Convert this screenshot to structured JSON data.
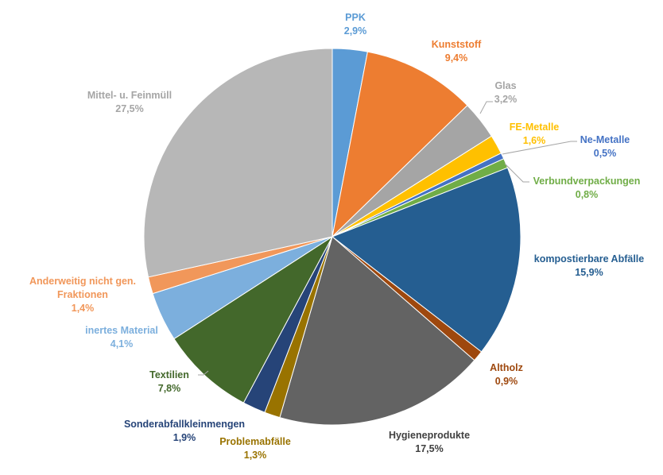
{
  "chart_data": {
    "type": "pie",
    "start_angle_deg": 0,
    "direction": "clockwise",
    "slices": [
      {
        "name": "PPK",
        "value": 2.9,
        "label": "2,9%",
        "color": "#5B9BD5",
        "text_color": "#5B9BD5"
      },
      {
        "name": "Kunststoff",
        "value": 9.4,
        "label": "9,4%",
        "color": "#ED7D31",
        "text_color": "#ED7D31"
      },
      {
        "name": "Glas",
        "value": 3.2,
        "label": "3,2%",
        "color": "#A5A5A5",
        "text_color": "#A5A5A5"
      },
      {
        "name": "FE-Metalle",
        "value": 1.6,
        "label": "1,6%",
        "color": "#FFC000",
        "text_color": "#FFC000"
      },
      {
        "name": "Ne-Metalle",
        "value": 0.5,
        "label": "0,5%",
        "color": "#4472C4",
        "text_color": "#4472C4"
      },
      {
        "name": "Verbundverpackungen",
        "value": 0.8,
        "label": "0,8%",
        "color": "#70AD47",
        "text_color": "#70AD47"
      },
      {
        "name": "kompostierbare Abfälle",
        "value": 15.9,
        "label": "15,9%",
        "color": "#255E91",
        "text_color": "#255E91"
      },
      {
        "name": "Altholz",
        "value": 0.9,
        "label": "0,9%",
        "color": "#9E480E",
        "text_color": "#9E480E"
      },
      {
        "name": "Hygieneprodukte",
        "value": 17.5,
        "label": "17,5%",
        "color": "#636363",
        "text_color": "#404040"
      },
      {
        "name": "Problemabfälle",
        "value": 1.3,
        "label": "1,3%",
        "color": "#997300",
        "text_color": "#997300"
      },
      {
        "name": "Sonderabfallkleinmengen",
        "value": 1.9,
        "label": "1,9%",
        "color": "#264478",
        "text_color": "#264478"
      },
      {
        "name": "Textilien",
        "value": 7.8,
        "label": "7,8%",
        "color": "#43682B",
        "text_color": "#43682B"
      },
      {
        "name": "inertes Material",
        "value": 4.1,
        "label": "4,1%",
        "color": "#7CAFDD",
        "text_color": "#7CAFDD"
      },
      {
        "name": "Anderweitig nicht gen. Fraktionen",
        "name_lines": [
          "Anderweitig nicht gen.",
          "Fraktionen"
        ],
        "value": 1.4,
        "label": "1,4%",
        "color": "#F1975A",
        "text_color": "#F1975A"
      },
      {
        "name": "Mittel- u. Feinmüll",
        "value": 27.5,
        "label": "27,5%",
        "color": "#B7B7B7",
        "text_color": "#A5A5A5"
      }
    ]
  }
}
